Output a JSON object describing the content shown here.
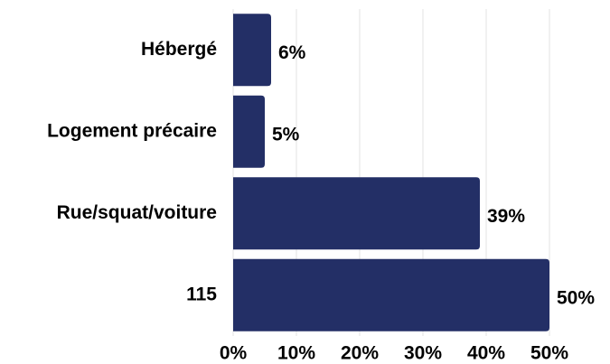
{
  "chart_data": {
    "type": "barh",
    "categories": [
      "Hébergé",
      "Logement précaire",
      "Rue/squat/voiture",
      "115"
    ],
    "values": [
      6,
      5,
      39,
      50
    ],
    "value_labels": [
      "6%",
      "5%",
      "39%",
      "50%"
    ],
    "color": "#232f66",
    "xlim": [
      0,
      50
    ],
    "xticks": [
      {
        "value": 0,
        "label": "0%"
      },
      {
        "value": 10,
        "label": "10%"
      },
      {
        "value": 20,
        "label": "20%"
      },
      {
        "value": 30,
        "label": "30%"
      },
      {
        "value": 40,
        "label": "40%"
      },
      {
        "value": 50,
        "label": "50%"
      }
    ],
    "grid": true
  }
}
